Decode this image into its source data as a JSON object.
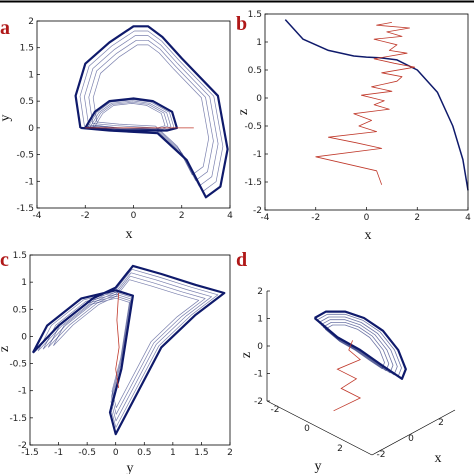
{
  "colors": {
    "attractor": "#0f1a6b",
    "signal": "#c0392b",
    "axis": "#000000",
    "panel_letter": "#b01818"
  },
  "chart_data": [
    {
      "type": "line",
      "panel": "a",
      "xlabel": "x",
      "ylabel": "y",
      "xlim": [
        -4,
        4
      ],
      "ylim": [
        -1.5,
        2
      ],
      "xticks": [
        -4,
        -2,
        0,
        2,
        4
      ],
      "yticks": [
        -1.5,
        -1,
        -0.5,
        0,
        0.5,
        1,
        1.5,
        2
      ],
      "series": [
        {
          "name": "",
          "x": [
            -2.2,
            -2.4,
            -2.0,
            -1.0,
            0.0,
            0.6,
            1.2,
            2.0,
            3.5,
            3.9,
            3.6,
            3.0,
            2.2,
            1.0,
            -1.0,
            -2.2
          ],
          "y": [
            0.0,
            0.6,
            1.2,
            1.6,
            1.9,
            1.9,
            1.7,
            1.3,
            0.6,
            -0.4,
            -1.1,
            -1.3,
            -0.6,
            -0.1,
            -0.05,
            0.0
          ]
        },
        {
          "name": "",
          "x": [
            -2.0,
            -1.6,
            -1.0,
            0.0,
            0.8,
            1.6,
            1.8,
            1.4,
            0.5,
            -0.8,
            -1.8,
            -2.0
          ],
          "y": [
            0.0,
            0.3,
            0.5,
            0.55,
            0.5,
            0.3,
            0.0,
            -0.05,
            -0.05,
            -0.05,
            0.0,
            0.0
          ]
        },
        {
          "name": "",
          "x": [
            -2.0,
            2.5
          ],
          "y": [
            0.0,
            0.0
          ]
        }
      ]
    },
    {
      "type": "line",
      "panel": "b",
      "xlabel": "x",
      "ylabel": "z",
      "xlim": [
        -4,
        4
      ],
      "ylim": [
        -2,
        1.5
      ],
      "xticks": [
        -4,
        -2,
        0,
        2,
        4
      ],
      "yticks": [
        -2,
        -1.5,
        -1,
        -0.5,
        0,
        0.5,
        1,
        1.5
      ],
      "series": [
        {
          "name": "",
          "x": [
            -3.2,
            -2.5,
            -1.5,
            -0.5,
            0.0,
            0.5,
            1.2,
            2.0,
            2.8,
            3.4,
            3.8,
            4.0
          ],
          "y": [
            1.4,
            1.05,
            0.85,
            0.75,
            0.73,
            0.72,
            0.68,
            0.5,
            0.1,
            -0.5,
            -1.1,
            -1.65
          ]
        },
        {
          "name": "",
          "x": [
            1.0,
            0.4,
            1.7,
            0.8,
            1.4,
            0.3,
            1.2,
            0.9,
            1.6,
            0.3,
            1.1,
            1.9,
            0.6,
            1.4,
            1.2,
            0.2,
            1.0,
            -0.2,
            0.7,
            0.3,
            0.9,
            -0.5,
            0.2,
            -0.3,
            0.4,
            -1.5,
            -0.4,
            0.6,
            -2.0,
            0.4,
            0.6
          ],
          "y": [
            1.35,
            1.3,
            1.25,
            1.18,
            1.1,
            1.05,
            0.95,
            0.85,
            0.8,
            0.7,
            0.62,
            0.55,
            0.45,
            0.38,
            0.3,
            0.2,
            0.12,
            0.05,
            -0.05,
            -0.12,
            -0.2,
            -0.28,
            -0.4,
            -0.5,
            -0.6,
            -0.7,
            -0.8,
            -0.9,
            -1.05,
            -1.3,
            -1.55
          ]
        }
      ]
    },
    {
      "type": "line",
      "panel": "c",
      "xlabel": "y",
      "ylabel": "z",
      "xlim": [
        -1.5,
        2
      ],
      "ylim": [
        -2,
        1.5
      ],
      "xticks": [
        -1.5,
        -1,
        -0.5,
        0,
        0.5,
        1,
        1.5,
        2
      ],
      "yticks": [
        -2,
        -1.5,
        -1,
        -0.5,
        0,
        0.5,
        1,
        1.5
      ],
      "series": [
        {
          "name": "",
          "x": [
            -1.45,
            -1.0,
            -0.4,
            0.0,
            0.3,
            0.8,
            1.4,
            1.9,
            1.4,
            0.8,
            0.0,
            -0.1,
            0.1,
            0.3,
            0.0,
            -0.6,
            -1.2,
            -1.45
          ],
          "y": [
            -0.3,
            0.2,
            0.7,
            0.9,
            1.3,
            1.15,
            0.95,
            0.8,
            0.4,
            -0.2,
            -1.8,
            -1.4,
            -0.6,
            0.75,
            0.85,
            0.7,
            0.2,
            -0.3
          ]
        },
        {
          "name": "",
          "x": [
            0.05,
            0.02,
            0.06,
            0.0,
            0.05
          ],
          "y": [
            0.8,
            0.3,
            -0.2,
            -0.6,
            -0.95
          ]
        }
      ]
    },
    {
      "type": "line",
      "panel": "d",
      "xlabel": "y",
      "ylabel": "z",
      "zlabel": "x",
      "zlim": [
        -2,
        2
      ],
      "zticks": [
        -2,
        -1,
        0,
        1,
        2
      ],
      "yticks_3d": [
        -2,
        0,
        2
      ],
      "xticks_3d": [
        -2,
        0,
        2
      ],
      "series": [
        {
          "name": "",
          "x": [
            -0.8,
            -0.5,
            0.0,
            0.5,
            1.0,
            1.4,
            1.6,
            1.5,
            1.0,
            0.4,
            -0.2,
            -0.8
          ],
          "y": [
            1.0,
            1.2,
            1.2,
            1.0,
            0.6,
            0.0,
            -0.6,
            -0.9,
            -0.5,
            0.0,
            0.4,
            1.0
          ]
        },
        {
          "name": "",
          "x": [
            0.2,
            0.1,
            0.4,
            -0.2,
            0.3,
            -0.1,
            0.4,
            -0.3
          ],
          "y": [
            0.3,
            0.0,
            -0.3,
            -0.6,
            -0.9,
            -1.2,
            -1.5,
            -1.9
          ]
        }
      ]
    }
  ]
}
